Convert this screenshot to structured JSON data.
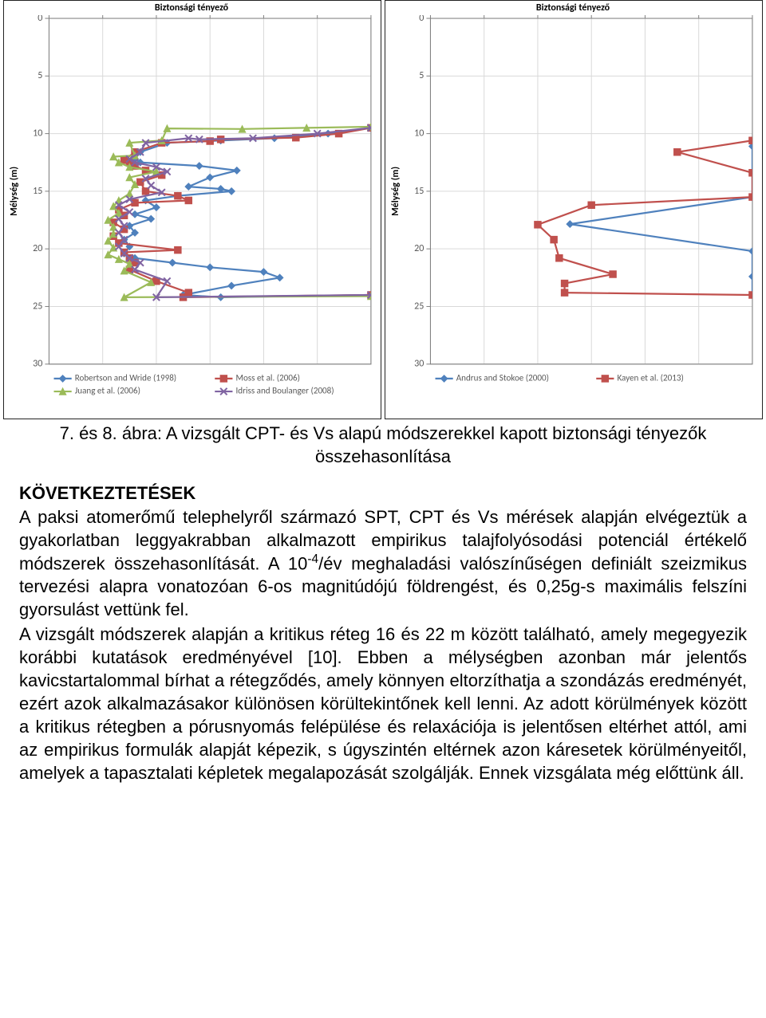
{
  "caption": "7. és 8. ábra: A vizsgált CPT- és Vs alapú módszerekkel kapott biztonsági tényezők összehasonlítása",
  "section_heading": "KÖVETKEZTETÉSEK",
  "para1_html": "A paksi atomerőmű telephelyről származó SPT, CPT és Vs mérések alapján elvégeztük a gyakorlatban leggyakrabban alkalmazott empirikus talajfolyósodási potenciál értékelő módszerek összehasonlítását. A 10<sup>-4</sup>/év meghaladási valószínűségen definiált szeizmikus tervezési alapra vonatozóan 6-os magnitúdójú földrengést, és 0,25g-s maximális felszíni gyorsulást vettünk fel.",
  "para2": "A vizsgált módszerek alapján a kritikus réteg 16 és 22 m között található, amely megegyezik korábbi kutatások eredményével [10]. Ebben a mélységben azonban már jelentős kavicstartalommal bírhat a rétegződés, amely könnyen eltorzíthatja a szondázás eredményét, ezért azok alkalmazásakor különösen körültekintőnek kell lenni. Az adott körülmények között a kritikus rétegben a pórusnyomás felépülése és relaxációja is jelentősen eltérhet attól, ami az empirikus formulák alapját képezik, s úgyszintén eltérnek azon káresetek körülményeitől, amelyek a tapasztalati képletek megalapozását szolgálják. Ennek vizsgálata még előttünk áll.",
  "chart_common": {
    "title": "Biztonsági tényező",
    "x_label": "",
    "y_label": "Mélység (m)",
    "x_min": 0,
    "x_max": 6,
    "x_step": 1,
    "y_min": 0,
    "y_max": 30,
    "y_step": 5,
    "axis_color": "#808080",
    "grid_color": "#d9d9d9",
    "tick_font_size": 12,
    "label_font_size": 12,
    "label_font_weight": "bold",
    "plot_bg": "#ffffff",
    "legend_font_size": 11,
    "line_width": 2.2,
    "marker_size": 4.2
  },
  "chart_left": {
    "series": [
      {
        "name": "Robertson and Wride (1998)",
        "color": "#4f81bd",
        "marker": "diamond",
        "data": [
          [
            6.0,
            9.5
          ],
          [
            5.2,
            10.0
          ],
          [
            4.2,
            10.4
          ],
          [
            3.2,
            10.6
          ],
          [
            2.2,
            10.8
          ],
          [
            1.7,
            11.6
          ],
          [
            1.6,
            12.2
          ],
          [
            1.7,
            12.5
          ],
          [
            2.8,
            12.8
          ],
          [
            3.5,
            13.2
          ],
          [
            3.0,
            13.8
          ],
          [
            2.6,
            14.6
          ],
          [
            3.2,
            14.8
          ],
          [
            3.4,
            15.0
          ],
          [
            2.4,
            15.4
          ],
          [
            1.8,
            15.8
          ],
          [
            2.0,
            16.4
          ],
          [
            1.6,
            17.0
          ],
          [
            1.9,
            17.4
          ],
          [
            1.5,
            18.0
          ],
          [
            1.6,
            18.6
          ],
          [
            1.4,
            19.2
          ],
          [
            1.5,
            19.8
          ],
          [
            1.4,
            20.4
          ],
          [
            1.6,
            20.8
          ],
          [
            2.3,
            21.2
          ],
          [
            3.0,
            21.6
          ],
          [
            4.0,
            22.0
          ],
          [
            4.3,
            22.5
          ],
          [
            3.4,
            23.2
          ],
          [
            2.5,
            24.0
          ],
          [
            3.2,
            24.2
          ],
          [
            6.0,
            24.0
          ]
        ]
      },
      {
        "name": "Moss et al. (2006)",
        "color": "#c0504d",
        "marker": "square",
        "data": [
          [
            6.0,
            9.5
          ],
          [
            5.4,
            10.0
          ],
          [
            4.6,
            10.35
          ],
          [
            3.2,
            10.5
          ],
          [
            3.0,
            10.65
          ],
          [
            2.1,
            10.8
          ],
          [
            1.6,
            11.6
          ],
          [
            1.4,
            12.3
          ],
          [
            1.5,
            12.5
          ],
          [
            1.6,
            12.8
          ],
          [
            1.8,
            13.2
          ],
          [
            2.1,
            13.6
          ],
          [
            1.7,
            14.2
          ],
          [
            1.8,
            15.0
          ],
          [
            2.4,
            15.4
          ],
          [
            2.6,
            15.8
          ],
          [
            1.6,
            16.0
          ],
          [
            1.3,
            16.6
          ],
          [
            1.4,
            17.1
          ],
          [
            1.2,
            17.7
          ],
          [
            1.4,
            18.3
          ],
          [
            1.2,
            18.9
          ],
          [
            1.3,
            19.5
          ],
          [
            2.4,
            20.1
          ],
          [
            1.4,
            20.3
          ],
          [
            1.5,
            20.8
          ],
          [
            1.6,
            21.2
          ],
          [
            1.5,
            21.8
          ],
          [
            2.0,
            22.8
          ],
          [
            2.6,
            23.8
          ],
          [
            2.5,
            24.2
          ],
          [
            6.0,
            24.0
          ]
        ]
      },
      {
        "name": "Juang et al. (2006)",
        "color": "#9bbb59",
        "marker": "triangle",
        "data": [
          [
            6.0,
            9.4
          ],
          [
            4.8,
            9.5
          ],
          [
            3.6,
            9.6
          ],
          [
            2.2,
            9.55
          ],
          [
            2.1,
            10.6
          ],
          [
            1.5,
            10.8
          ],
          [
            1.6,
            11.9
          ],
          [
            1.2,
            12.0
          ],
          [
            1.3,
            12.5
          ],
          [
            1.5,
            12.9
          ],
          [
            2.0,
            13.3
          ],
          [
            1.5,
            13.8
          ],
          [
            1.6,
            14.4
          ],
          [
            1.5,
            15.2
          ],
          [
            1.3,
            15.8
          ],
          [
            1.2,
            16.3
          ],
          [
            1.3,
            16.9
          ],
          [
            1.1,
            17.5
          ],
          [
            1.2,
            18.1
          ],
          [
            1.2,
            18.7
          ],
          [
            1.1,
            19.3
          ],
          [
            1.2,
            19.9
          ],
          [
            1.1,
            20.5
          ],
          [
            1.3,
            20.9
          ],
          [
            1.5,
            21.3
          ],
          [
            1.4,
            21.9
          ],
          [
            1.9,
            22.9
          ],
          [
            1.4,
            24.2
          ],
          [
            6.0,
            24.1
          ]
        ]
      },
      {
        "name": "Idriss and Boulanger (2008)",
        "color": "#8064a2",
        "marker": "x",
        "data": [
          [
            6.0,
            9.5
          ],
          [
            5.0,
            10.0
          ],
          [
            3.8,
            10.4
          ],
          [
            2.8,
            10.5
          ],
          [
            2.6,
            10.4
          ],
          [
            1.8,
            10.8
          ],
          [
            1.7,
            11.6
          ],
          [
            1.5,
            12.2
          ],
          [
            1.6,
            12.5
          ],
          [
            2.0,
            12.9
          ],
          [
            2.2,
            13.3
          ],
          [
            1.8,
            13.9
          ],
          [
            1.9,
            14.5
          ],
          [
            2.1,
            15.1
          ],
          [
            1.5,
            15.7
          ],
          [
            1.3,
            16.2
          ],
          [
            1.5,
            16.8
          ],
          [
            1.3,
            17.4
          ],
          [
            1.4,
            18.0
          ],
          [
            1.3,
            18.6
          ],
          [
            1.4,
            19.2
          ],
          [
            1.3,
            19.8
          ],
          [
            1.4,
            20.4
          ],
          [
            1.5,
            20.8
          ],
          [
            1.7,
            21.2
          ],
          [
            1.6,
            21.8
          ],
          [
            2.2,
            22.8
          ],
          [
            2.0,
            24.2
          ],
          [
            6.0,
            24.0
          ]
        ]
      }
    ]
  },
  "chart_right": {
    "series": [
      {
        "name": "Andrus and Stokoe (2000)",
        "color": "#4f81bd",
        "marker": "diamond",
        "data": [
          [
            6.0,
            11.1
          ],
          [
            6.0,
            13.4
          ],
          [
            6.0,
            15.5
          ],
          [
            2.6,
            17.85
          ],
          [
            6.0,
            20.2
          ],
          [
            6.0,
            22.4
          ],
          [
            6.0,
            24.0
          ]
        ]
      },
      {
        "name": "Kayen et al. (2013)",
        "color": "#c0504d",
        "marker": "square",
        "data": [
          [
            6.0,
            10.6
          ],
          [
            4.6,
            11.6
          ],
          [
            6.0,
            13.4
          ],
          [
            6.0,
            15.5
          ],
          [
            3.0,
            16.2
          ],
          [
            2.0,
            17.9
          ],
          [
            2.3,
            19.2
          ],
          [
            2.4,
            20.8
          ],
          [
            3.4,
            22.2
          ],
          [
            2.5,
            23.0
          ],
          [
            2.5,
            23.8
          ],
          [
            6.0,
            24.0
          ]
        ]
      }
    ]
  }
}
